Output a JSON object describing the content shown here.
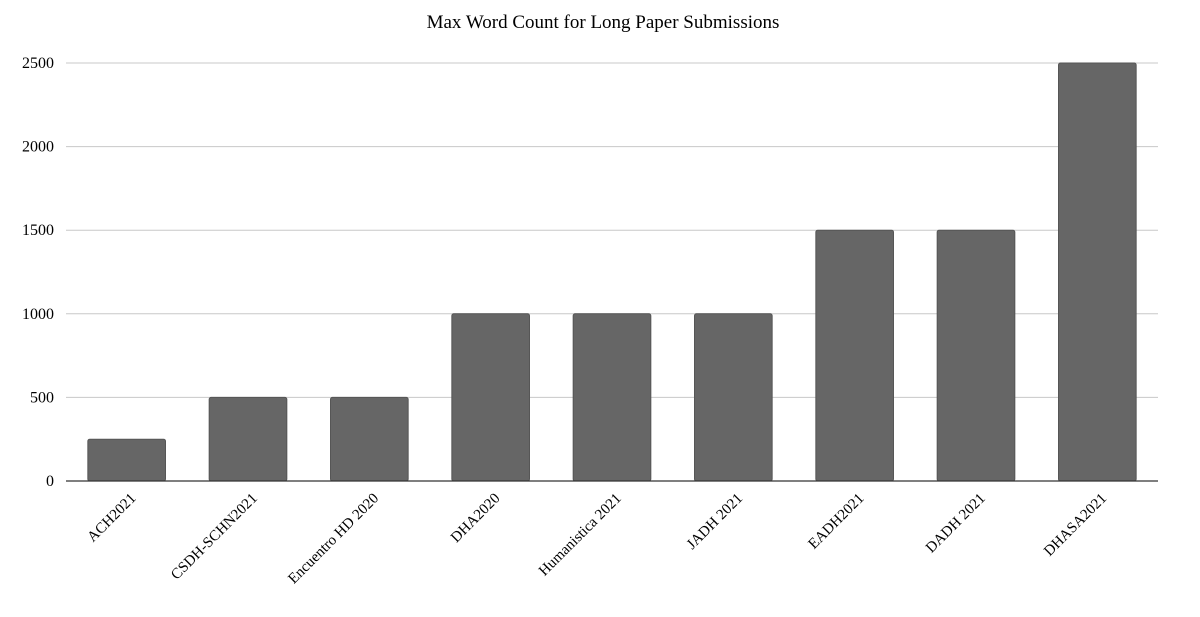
{
  "chart_data": {
    "type": "bar",
    "title": "Max Word Count for Long Paper Submissions",
    "xlabel": "",
    "ylabel": "",
    "categories": [
      "ACH2021",
      "CSDH-SCHN2021",
      "Encuentro HD 2020",
      "DHA2020",
      "Humanistica 2021",
      "JADH 2021",
      "EADH2021",
      "DADH 2021",
      "DHASA2021"
    ],
    "values": [
      250,
      500,
      500,
      1000,
      1000,
      1000,
      1500,
      1500,
      2500
    ],
    "yticks": [
      "0",
      "500",
      "1000",
      "1500",
      "2000",
      "2500"
    ],
    "ylim": [
      0,
      2500
    ],
    "grid": true,
    "legend": "none",
    "colors": {
      "bar": "#666666",
      "grid": "#c8c8c8",
      "axis": "#333333"
    }
  }
}
